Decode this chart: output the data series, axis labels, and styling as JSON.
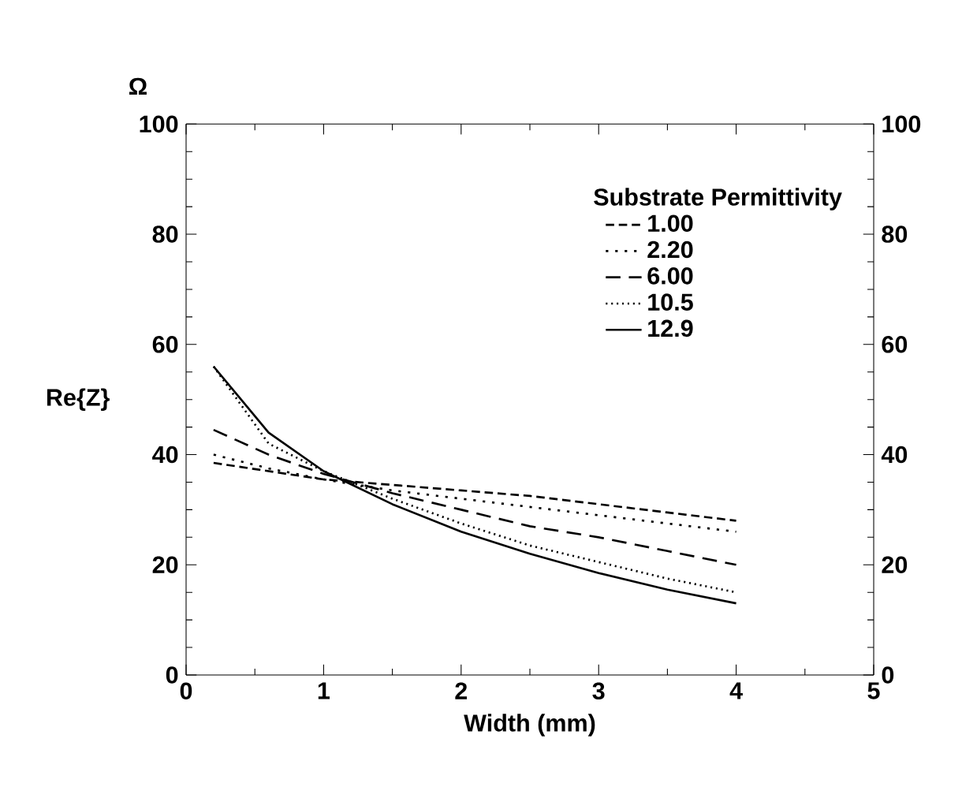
{
  "chart_data": {
    "type": "line",
    "xlabel": "Width (mm)",
    "ylabel": "Re{Z}",
    "legend_title": "Substrate Permittivity",
    "annotations": [
      "Ω"
    ],
    "x": [
      0.2,
      0.6,
      1.0,
      1.5,
      2.0,
      2.5,
      3.0,
      3.5,
      4.0
    ],
    "series": [
      {
        "name": "1.00",
        "color": "#000000",
        "line_style": "dashed",
        "values": [
          38.5,
          37,
          35.5,
          34.5,
          33.5,
          32.5,
          31,
          29.5,
          28
        ]
      },
      {
        "name": "2.20",
        "color": "#000000",
        "line_style": "dotted",
        "values": [
          40,
          37.5,
          35.5,
          33.5,
          32,
          30.5,
          29,
          27.5,
          26
        ]
      },
      {
        "name": "6.00",
        "color": "#000000",
        "line_style": "dashed",
        "values": [
          44.5,
          40,
          36.5,
          33,
          30,
          27,
          25,
          22.5,
          20
        ]
      },
      {
        "name": "10.5",
        "color": "#000000",
        "line_style": "dotted",
        "values": [
          56,
          42,
          37,
          32,
          27.5,
          23.5,
          20.5,
          17.5,
          15
        ]
      },
      {
        "name": "12.9",
        "color": "#000000",
        "line_style": "solid",
        "values": [
          56,
          44,
          37,
          31,
          26,
          22,
          18.5,
          15.5,
          13
        ]
      }
    ],
    "xlim": [
      0,
      5
    ],
    "xticks": [
      0,
      1,
      2,
      3,
      4,
      5
    ],
    "ylim": [
      0,
      100
    ],
    "yticks": [
      0,
      20,
      40,
      60,
      80,
      100
    ],
    "y2lim": [
      0,
      100
    ],
    "y2ticks": [
      0,
      20,
      40,
      60,
      80,
      100
    ],
    "grid": false,
    "legend": "top right",
    "marker": "none"
  }
}
